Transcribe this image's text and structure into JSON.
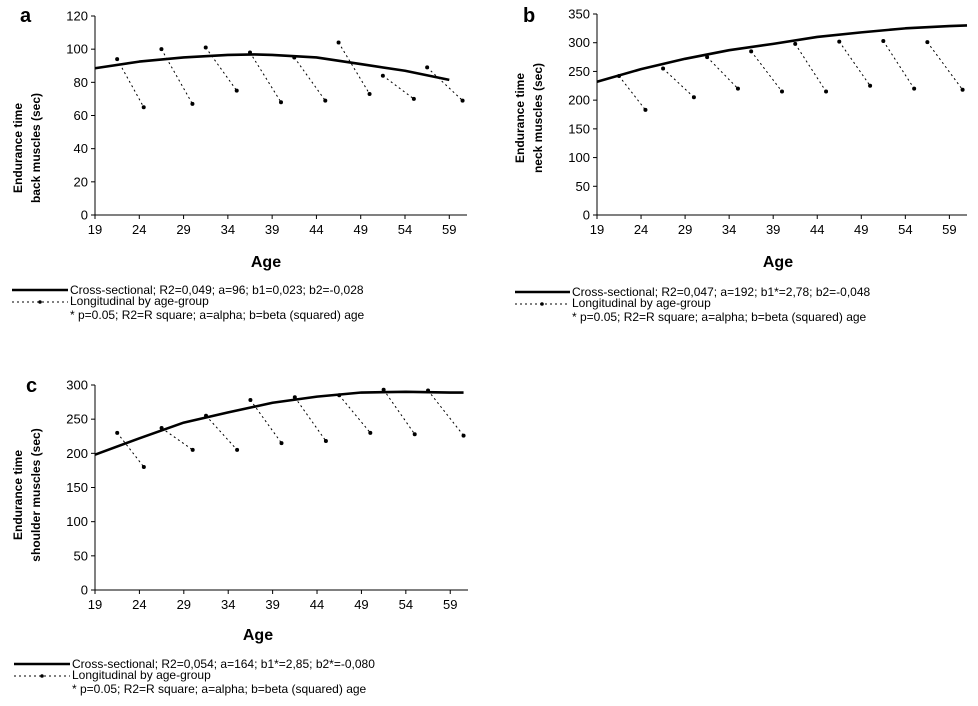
{
  "chart_data": [
    {
      "type": "line",
      "panel_label": "a",
      "xlabel": "Age",
      "ylabel_lines": [
        "Endurance time",
        "back muscles (sec)"
      ],
      "xlim": [
        19,
        61
      ],
      "ylim": [
        0,
        120
      ],
      "x_ticks": [
        19,
        24,
        29,
        34,
        39,
        44,
        49,
        54,
        59
      ],
      "y_ticks": [
        0,
        20,
        40,
        60,
        80,
        100,
        120
      ],
      "grid": false,
      "series": [
        {
          "style": "solid",
          "x": [
            19,
            24,
            29,
            34,
            37,
            39,
            44,
            49,
            54,
            59
          ],
          "y": [
            88.5,
            92.5,
            95,
            96.5,
            96.8,
            96.5,
            95,
            91,
            87,
            81.5
          ]
        },
        {
          "style": "dotted",
          "segments": [
            {
              "x": [
                21.5,
                24.5
              ],
              "y": [
                94,
                65
              ]
            },
            {
              "x": [
                26.5,
                30
              ],
              "y": [
                100,
                67
              ]
            },
            {
              "x": [
                31.5,
                35
              ],
              "y": [
                101,
                75
              ]
            },
            {
              "x": [
                36.5,
                40
              ],
              "y": [
                98,
                68
              ]
            },
            {
              "x": [
                41.5,
                45
              ],
              "y": [
                95,
                69
              ]
            },
            {
              "x": [
                46.5,
                50
              ],
              "y": [
                104,
                73
              ]
            },
            {
              "x": [
                51.5,
                55
              ],
              "y": [
                84,
                70
              ]
            },
            {
              "x": [
                56.5,
                60.5
              ],
              "y": [
                89,
                69
              ]
            }
          ]
        }
      ],
      "legend": {
        "placement": "bottom",
        "entries": [
          "Cross-sectional; R2=0,049; a=96; b1=0,023; b2=-0,028",
          "Longitudinal by age-group"
        ],
        "note": "* p=0.05; R2=R square; a=alpha; b=beta (squared) age"
      }
    },
    {
      "type": "line",
      "panel_label": "b",
      "xlabel": "Age",
      "ylabel_lines": [
        "Endurance time",
        "neck muscles (sec)"
      ],
      "xlim": [
        19,
        61
      ],
      "ylim": [
        0,
        350
      ],
      "x_ticks": [
        19,
        24,
        29,
        34,
        39,
        44,
        49,
        54,
        59
      ],
      "y_ticks": [
        0,
        50,
        100,
        150,
        200,
        250,
        300,
        350
      ],
      "grid": false,
      "series": [
        {
          "style": "solid",
          "x": [
            19,
            24,
            29,
            34,
            39,
            44,
            49,
            54,
            59,
            61
          ],
          "y": [
            232,
            254,
            272,
            287,
            298,
            310,
            318,
            325,
            329,
            330
          ]
        },
        {
          "style": "dotted",
          "segments": [
            {
              "x": [
                21.5,
                24.5
              ],
              "y": [
                242,
                183
              ]
            },
            {
              "x": [
                26.5,
                30
              ],
              "y": [
                255,
                205
              ]
            },
            {
              "x": [
                31.5,
                35
              ],
              "y": [
                275,
                220
              ]
            },
            {
              "x": [
                36.5,
                40
              ],
              "y": [
                285,
                215
              ]
            },
            {
              "x": [
                41.5,
                45
              ],
              "y": [
                298,
                215
              ]
            },
            {
              "x": [
                46.5,
                50
              ],
              "y": [
                302,
                225
              ]
            },
            {
              "x": [
                51.5,
                55
              ],
              "y": [
                303,
                220
              ]
            },
            {
              "x": [
                56.5,
                60.5
              ],
              "y": [
                301,
                218
              ]
            }
          ]
        }
      ],
      "legend": {
        "placement": "bottom",
        "entries": [
          "Cross-sectional; R2=0,047; a=192; b1*=2,78; b2=-0,048",
          "Longitudinal by age-group"
        ],
        "note": "* p=0.05; R2=R square; a=alpha; b=beta (squared) age"
      }
    },
    {
      "type": "line",
      "panel_label": "c",
      "xlabel": "Age",
      "ylabel_lines": [
        "Endurance time",
        "shoulder muscles (sec)"
      ],
      "xlim": [
        19,
        61
      ],
      "ylim": [
        0,
        300
      ],
      "x_ticks": [
        19,
        24,
        29,
        34,
        39,
        44,
        49,
        54,
        59
      ],
      "y_ticks": [
        0,
        50,
        100,
        150,
        200,
        250,
        300
      ],
      "grid": false,
      "series": [
        {
          "style": "solid",
          "x": [
            19,
            24,
            29,
            34,
            39,
            44,
            49,
            54,
            59,
            60.5
          ],
          "y": [
            198,
            222,
            245,
            260,
            274,
            283,
            289,
            290,
            289,
            289
          ]
        },
        {
          "style": "dotted",
          "segments": [
            {
              "x": [
                21.5,
                24.5
              ],
              "y": [
                230,
                180
              ]
            },
            {
              "x": [
                26.5,
                30
              ],
              "y": [
                237,
                205
              ]
            },
            {
              "x": [
                31.5,
                35
              ],
              "y": [
                255,
                205
              ]
            },
            {
              "x": [
                36.5,
                40
              ],
              "y": [
                278,
                215
              ]
            },
            {
              "x": [
                41.5,
                45
              ],
              "y": [
                282,
                218
              ]
            },
            {
              "x": [
                46.5,
                50
              ],
              "y": [
                285,
                230
              ]
            },
            {
              "x": [
                51.5,
                55
              ],
              "y": [
                293,
                228
              ]
            },
            {
              "x": [
                56.5,
                60.5
              ],
              "y": [
                292,
                226
              ]
            }
          ]
        }
      ],
      "legend": {
        "placement": "bottom",
        "entries": [
          "Cross-sectional; R2=0,054; a=164; b1*=2,85; b2*=-0,080",
          "Longitudinal by age-group"
        ],
        "note": "* p=0.05; R2=R square; a=alpha; b=beta (squared) age"
      }
    }
  ]
}
